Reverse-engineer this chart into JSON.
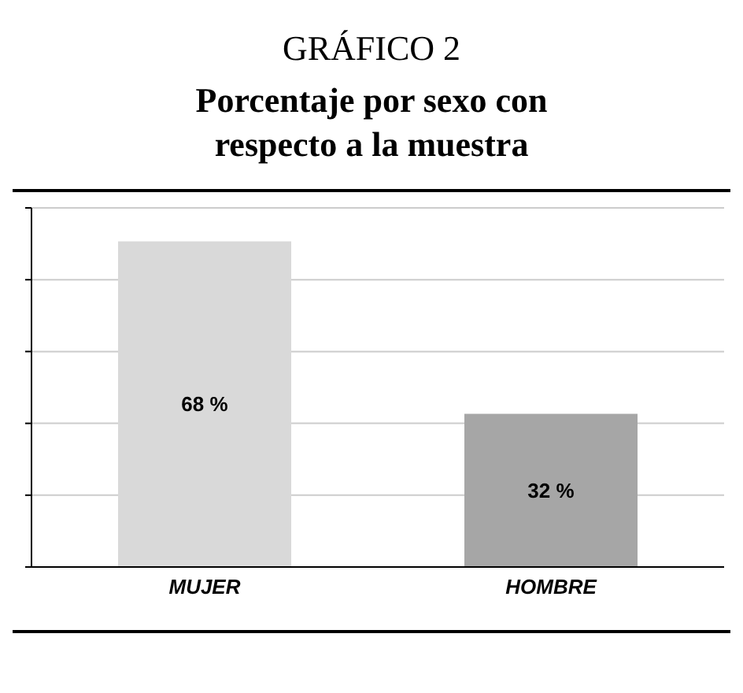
{
  "chart_data": {
    "type": "bar",
    "title": "GRÁFICO 2",
    "subtitle": "Porcentaje por sexo con respecto a la muestra",
    "categories": [
      "MUJER",
      "HOMBRE"
    ],
    "values": [
      68,
      32
    ],
    "colors": [
      "#d9d9d9",
      "#a6a6a6"
    ],
    "value_labels": [
      "68 %",
      "32 %"
    ],
    "tick_labels": "x",
    "grid": "y"
  }
}
